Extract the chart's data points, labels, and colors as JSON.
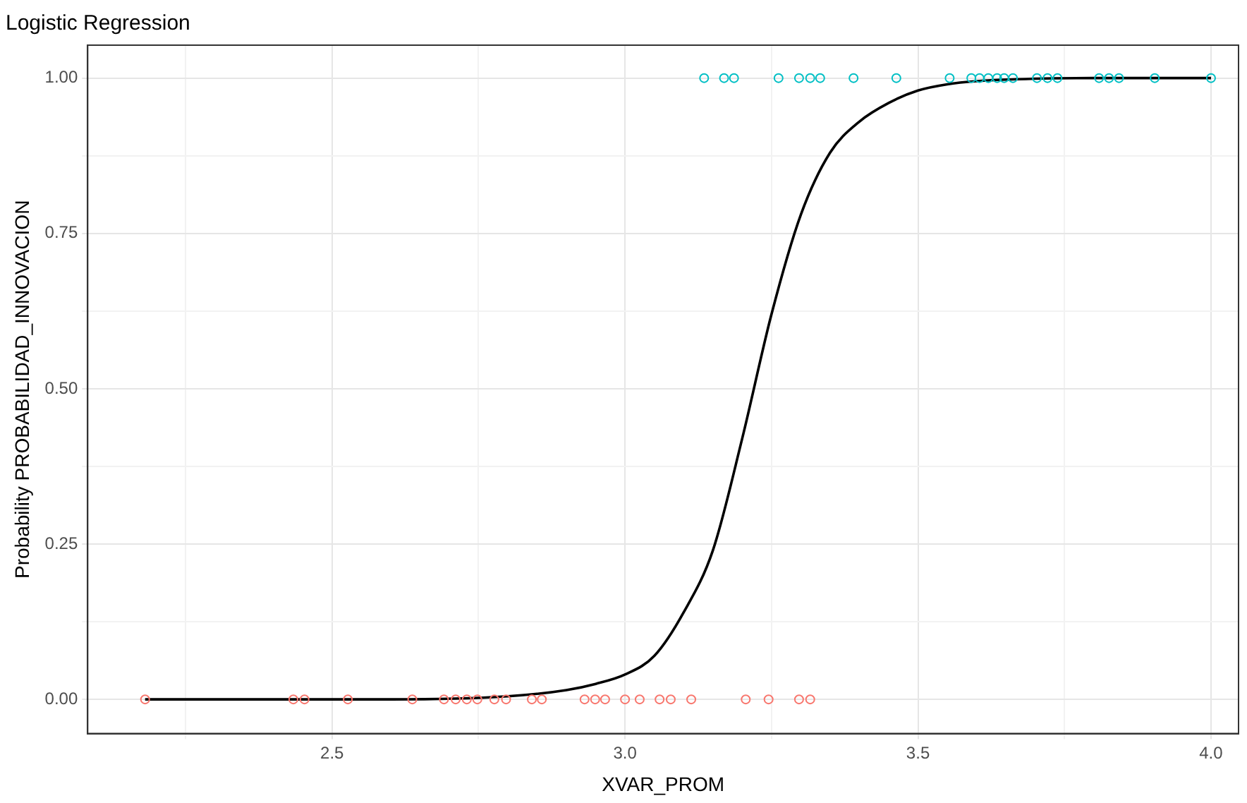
{
  "chart_data": {
    "type": "scatter",
    "title": "Logistic Regression",
    "xlabel": "XVAR_PROM",
    "ylabel": "Probability PROBABILIDAD_INNOVACION",
    "xlim": [
      2.083,
      4.047
    ],
    "ylim": [
      -0.055,
      1.053
    ],
    "xticks": [
      {
        "value": 2.25,
        "label": null
      },
      2.5,
      {
        "value": 2.75,
        "label": null
      },
      {
        "value": 3,
        "label": "3.0"
      },
      {
        "value": 3.25,
        "label": null
      },
      3.5,
      {
        "value": 3.75,
        "label": null
      },
      {
        "value": 4,
        "label": "4.0"
      }
    ],
    "yticks": [
      {
        "value": 0,
        "label": "0.00"
      },
      {
        "value": 0.125,
        "label": null
      },
      0.25,
      {
        "value": 0.375,
        "label": null
      },
      {
        "value": 0.5,
        "label": "0.50"
      },
      {
        "value": 0.625,
        "label": null
      },
      0.75,
      {
        "value": 0.875,
        "label": null
      },
      {
        "value": 1,
        "label": "1.00"
      }
    ],
    "grid": true,
    "legend": false,
    "marker": "circle",
    "series": [
      {
        "color": "#f8766d",
        "x": [
          2.181,
          2.434,
          2.453,
          2.527,
          2.637,
          2.691,
          2.711,
          2.73,
          2.748,
          2.777,
          2.797,
          2.841,
          2.858,
          2.931,
          2.949,
          2.966,
          3.0,
          3.025,
          3.059,
          3.078,
          3.113,
          3.206,
          3.245,
          3.297,
          3.316
        ],
        "values": [
          0,
          0,
          0,
          0,
          0,
          0,
          0,
          0,
          0,
          0,
          0,
          0,
          0,
          0,
          0,
          0,
          0,
          0,
          0,
          0,
          0,
          0,
          0,
          0,
          0
        ]
      },
      {
        "color": "#00bfc4",
        "x": [
          3.135,
          3.169,
          3.186,
          3.262,
          3.297,
          3.316,
          3.333,
          3.39,
          3.463,
          3.554,
          3.591,
          3.605,
          3.62,
          3.635,
          3.647,
          3.662,
          3.703,
          3.721,
          3.738,
          3.809,
          3.826,
          3.843,
          3.904,
          4.0
        ],
        "values": [
          1,
          1,
          1,
          1,
          1,
          1,
          1,
          1,
          1,
          1,
          1,
          1,
          1,
          1,
          1,
          1,
          1,
          1,
          1,
          1,
          1,
          1,
          1,
          1
        ]
      },
      {
        "type": "line",
        "color": "#000000",
        "marker": "none",
        "x": [
          2.181,
          2.6,
          2.8,
          2.9,
          2.95,
          3.0,
          3.05,
          3.1,
          3.15,
          3.2,
          3.25,
          3.3,
          3.35,
          3.4,
          3.45,
          3.5,
          3.55,
          3.6,
          3.7,
          3.8,
          4.0
        ],
        "values": [
          0,
          0,
          0.005,
          0.015,
          0.025,
          0.04,
          0.07,
          0.14,
          0.24,
          0.42,
          0.62,
          0.78,
          0.88,
          0.93,
          0.96,
          0.98,
          0.99,
          0.995,
          0.999,
          1,
          1
        ]
      }
    ]
  }
}
